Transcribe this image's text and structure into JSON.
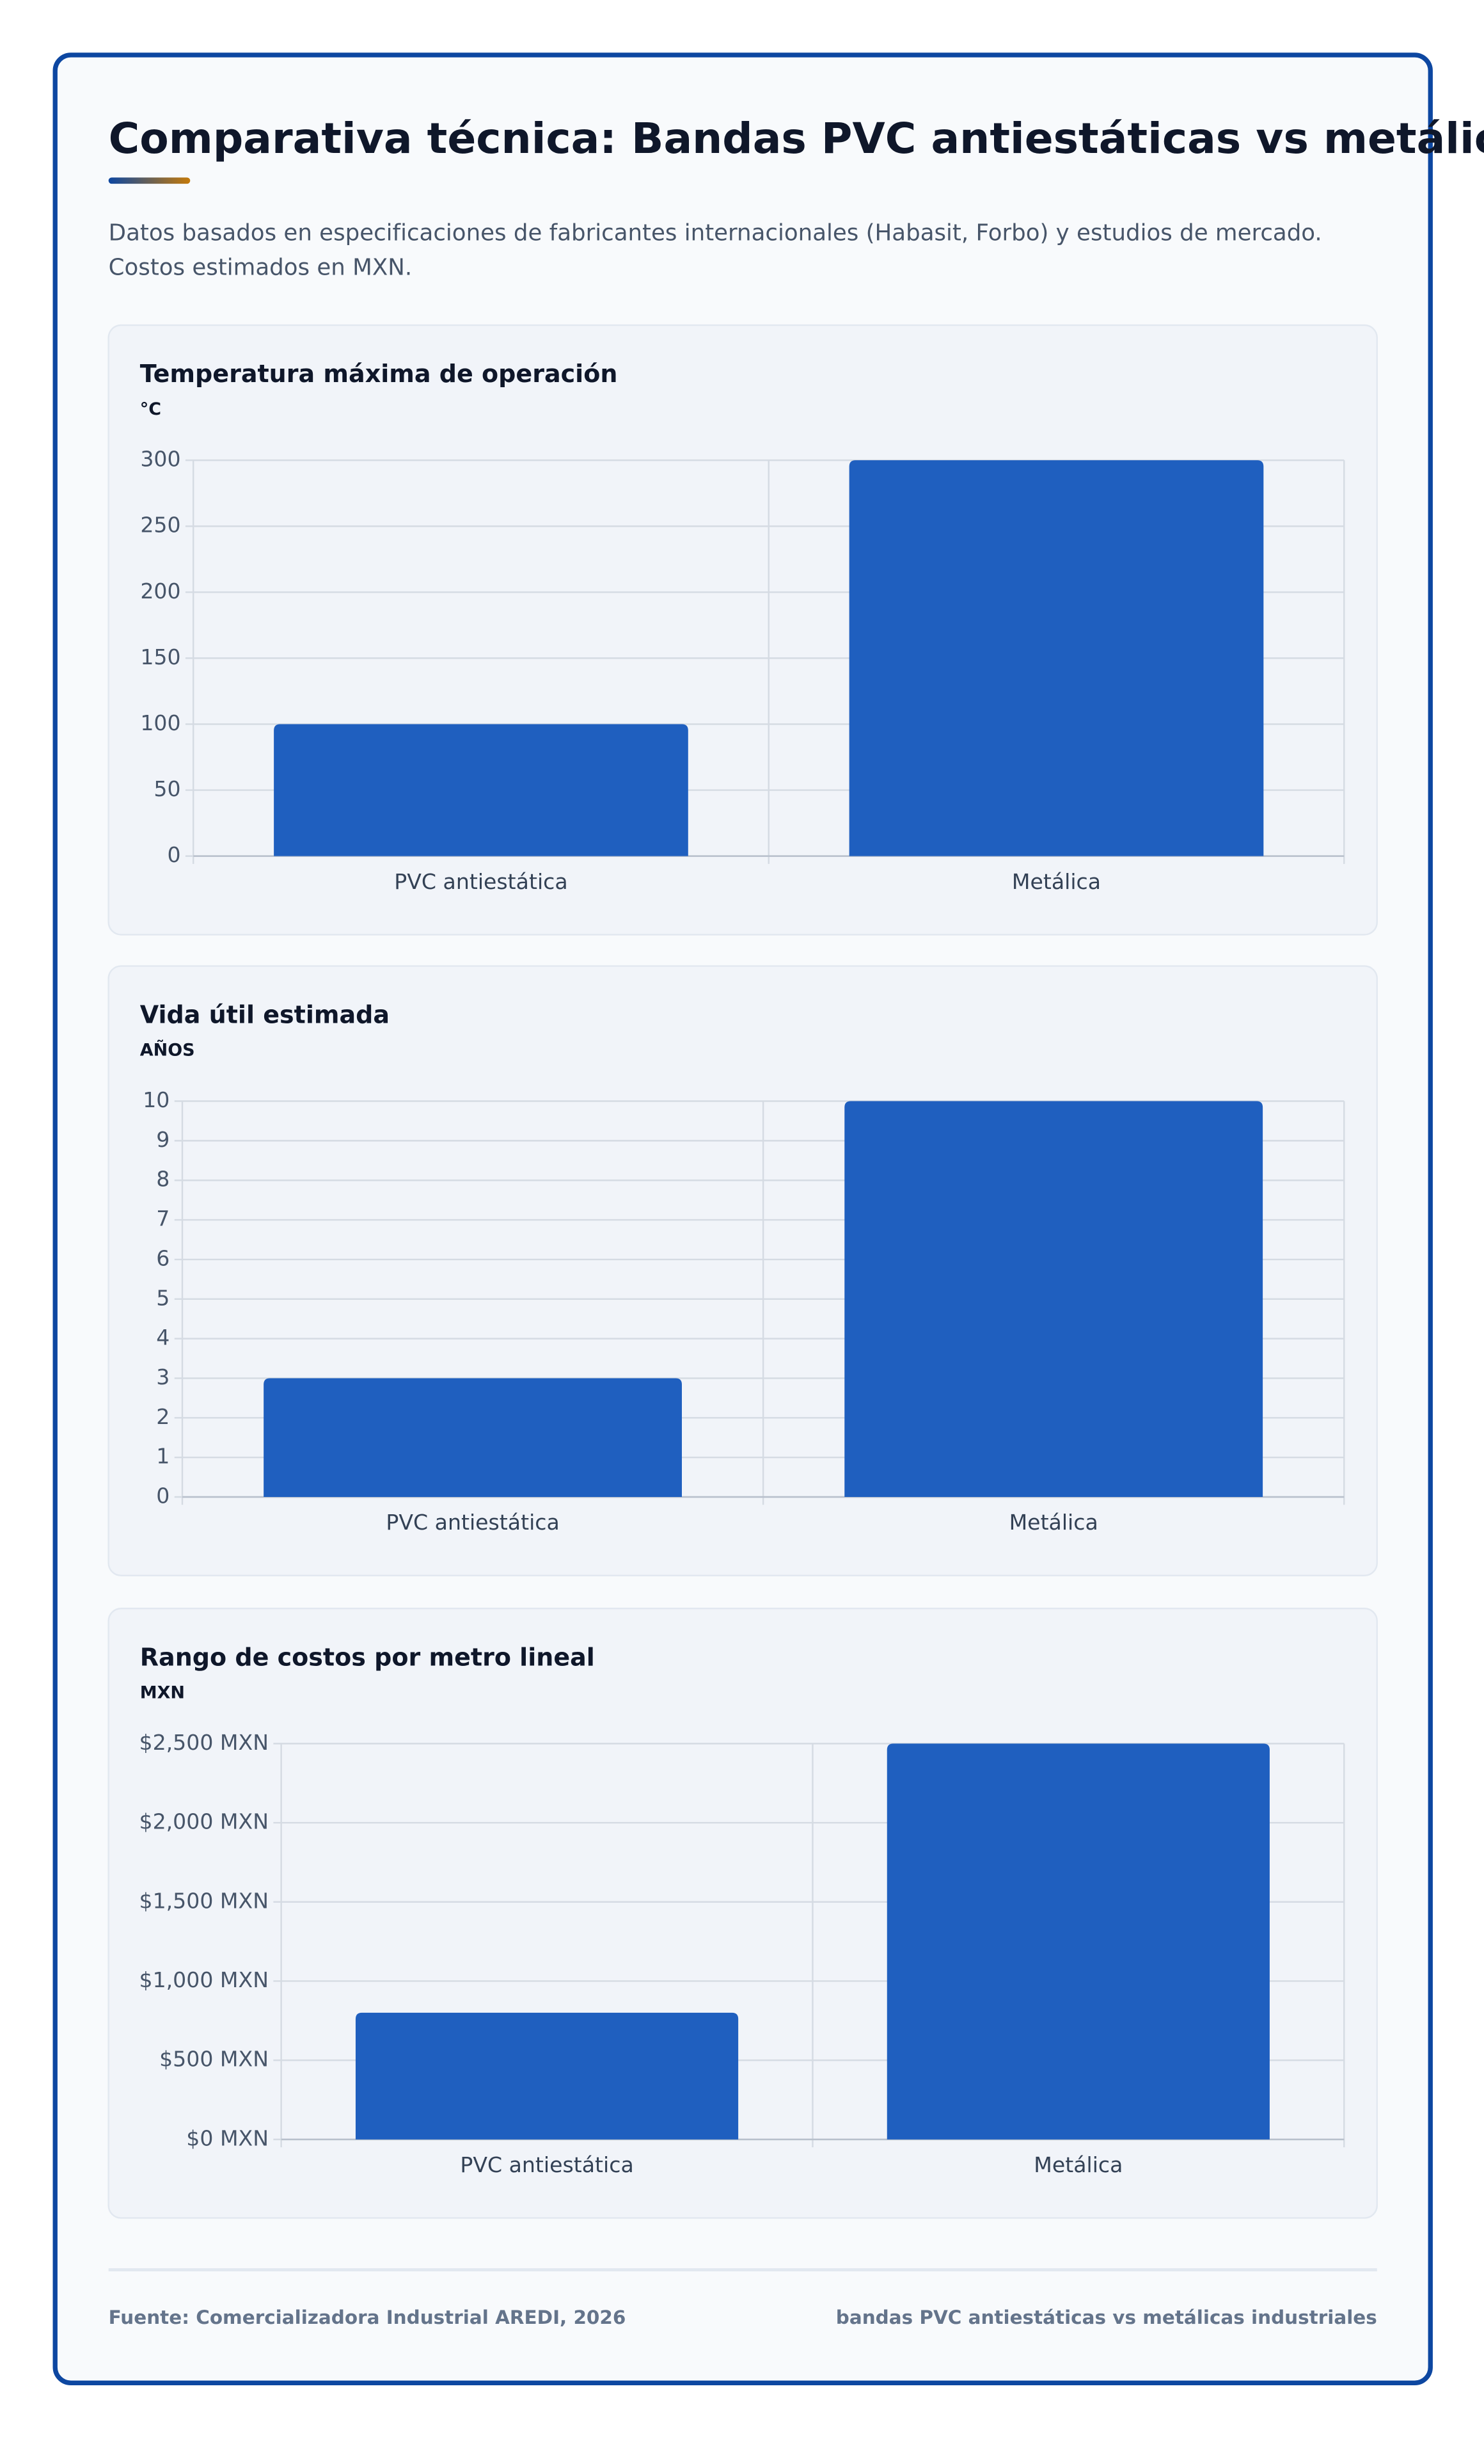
{
  "header": {
    "title": "Comparativa técnica: Bandas PVC antiestáticas vs metálicas",
    "subtitle": "Datos basados en especificaciones de fabricantes internacionales (Habasit, Forbo) y estudios de mercado. Costos estimados en MXN."
  },
  "chart_data": [
    {
      "type": "bar",
      "title": "Temperatura máxima de operación",
      "y_label": "°C",
      "categories": [
        "PVC antiestática",
        "Metálica"
      ],
      "values": [
        100,
        300
      ],
      "color": "#1f5fbf",
      "ylim": [
        0,
        300
      ],
      "yticks": [
        0,
        50,
        100,
        150,
        200,
        250,
        300
      ],
      "grid": true
    },
    {
      "type": "bar",
      "title": "Vida útil estimada",
      "y_label": "AÑOS",
      "categories": [
        "PVC antiestática",
        "Metálica"
      ],
      "values": [
        3,
        10
      ],
      "color": "#1f5fbf",
      "ylim": [
        0,
        10
      ],
      "yticks": [
        0,
        1,
        2,
        3,
        4,
        5,
        6,
        7,
        8,
        9,
        10
      ],
      "grid": true
    },
    {
      "type": "bar",
      "title": "Rango de costos por metro lineal",
      "y_label": "MXN",
      "categories": [
        "PVC antiestática",
        "Metálica"
      ],
      "values": [
        800,
        2500
      ],
      "color": "#1f5fbf",
      "ylim": [
        0,
        2500
      ],
      "yticks": [
        {
          "value": 0,
          "label": "$0 MXN"
        },
        {
          "value": 500,
          "label": "$500 MXN"
        },
        {
          "value": 1000,
          "label": "$1,000 MXN"
        },
        {
          "value": 1500,
          "label": "$1,500 MXN"
        },
        {
          "value": 2000,
          "label": "$2,000 MXN"
        },
        {
          "value": 2500,
          "label": "$2,500 MXN"
        }
      ],
      "grid": true
    }
  ],
  "footer": {
    "source": "Fuente: Comercializadora Industrial AREDI, 2026",
    "tag": "bandas PVC antiestáticas vs metálicas industriales"
  }
}
